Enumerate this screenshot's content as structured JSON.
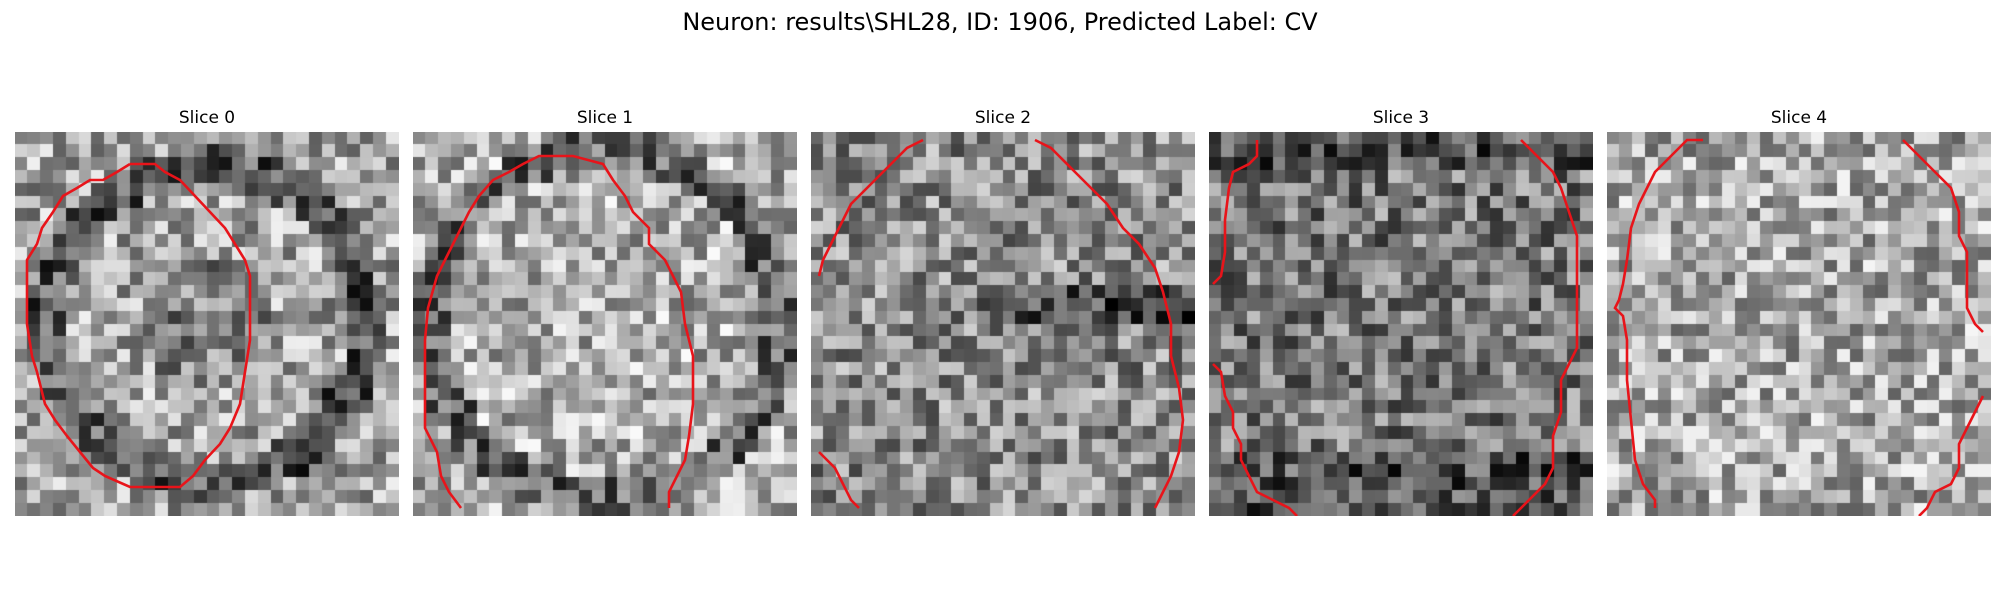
{
  "figure": {
    "title": "Neuron: results\\SHL28, ID: 1906, Predicted Label: CV"
  },
  "grid_size": 30,
  "colors": {
    "contour": "#e8141a",
    "background": "#ffffff"
  },
  "slices": [
    {
      "title": "Slice 0",
      "seed": 11,
      "profile": "ring"
    },
    {
      "title": "Slice 1",
      "seed": 23,
      "profile": "ring-light"
    },
    {
      "title": "Slice 2",
      "seed": 37,
      "profile": "dark-band"
    },
    {
      "title": "Slice 3",
      "seed": 51,
      "profile": "dark"
    },
    {
      "title": "Slice 4",
      "seed": 67,
      "profile": "light"
    }
  ]
}
